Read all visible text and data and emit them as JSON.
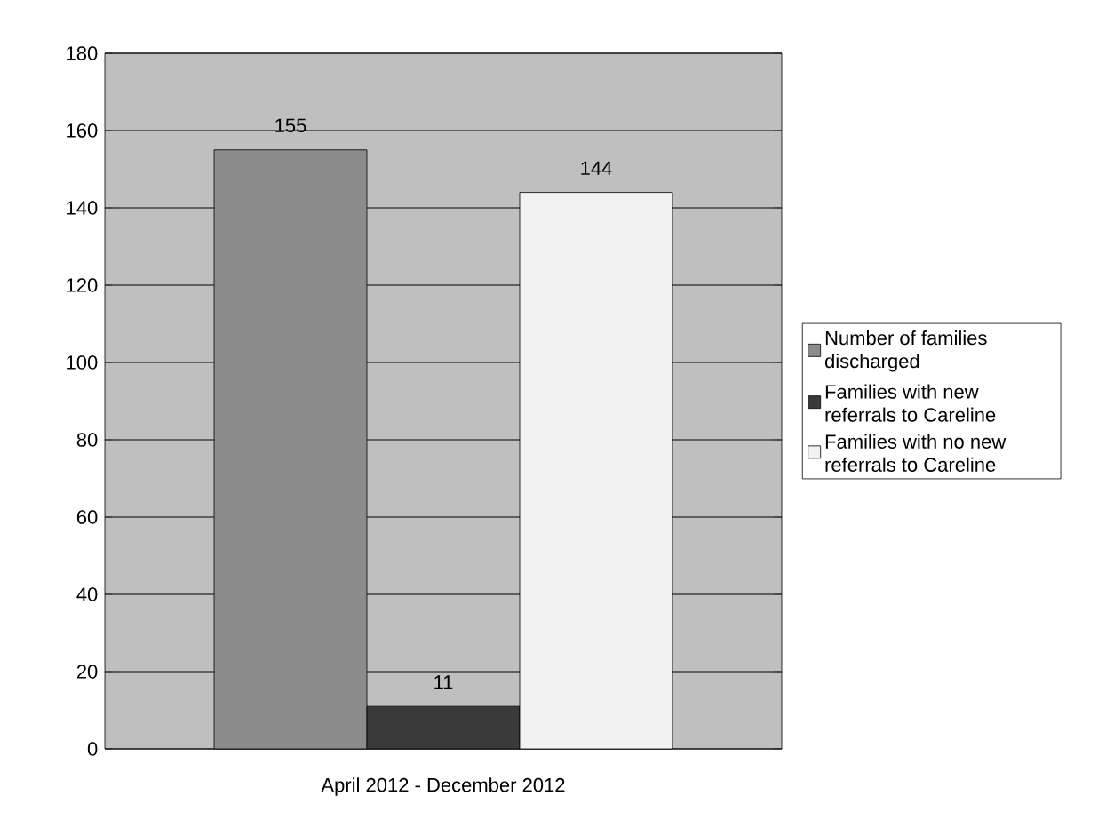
{
  "chart_data": {
    "type": "bar",
    "categories": [
      "April 2012 - December 2012"
    ],
    "series": [
      {
        "name": "Number of families discharged",
        "color": "#8c8c8c",
        "values": [
          155
        ]
      },
      {
        "name": "Families with new referrals to Careline",
        "color": "#3a3a3a",
        "values": [
          11
        ]
      },
      {
        "name": "Families with no new referrals to Careline",
        "color": "#f2f2f2",
        "values": [
          144
        ]
      }
    ],
    "ylim": [
      0,
      180
    ],
    "yticks": [
      0,
      20,
      40,
      60,
      80,
      100,
      120,
      140,
      160,
      180
    ],
    "grid": "y",
    "legend": "right",
    "data_labels": true
  }
}
